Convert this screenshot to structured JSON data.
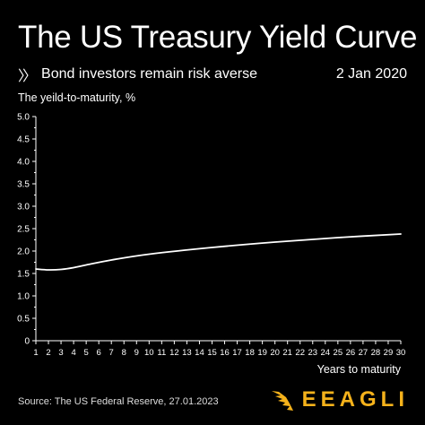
{
  "header": {
    "title": "The US Treasury Yield Curve",
    "subtitle_chevron": "〉〉",
    "subtitle": "Bond investors remain risk averse",
    "date": "2 Jan 2020"
  },
  "footer": {
    "source": "Source: The US Federal Reserve, 27.01.2023",
    "brand": "EEAGLI"
  },
  "colors": {
    "background": "#000000",
    "foreground": "#ffffff",
    "accent": "#f5b21b"
  },
  "chart_data": {
    "type": "line",
    "title": "The US Treasury Yield Curve",
    "subtitle": "Bond investors remain risk averse",
    "ylabel": "The yeild-to-maturity, %",
    "xlabel": "Years to maturity",
    "xlim": [
      1,
      30
    ],
    "ylim": [
      0,
      5.0
    ],
    "xticks": [
      1,
      2,
      3,
      4,
      5,
      6,
      7,
      8,
      9,
      10,
      11,
      12,
      13,
      14,
      15,
      16,
      17,
      18,
      19,
      20,
      21,
      22,
      23,
      24,
      25,
      26,
      27,
      28,
      29,
      30
    ],
    "yticks": [
      "0",
      "0.5",
      "1.0",
      "1.5",
      "2.0",
      "2.5",
      "3.0",
      "3.5",
      "4.0",
      "4.5",
      "5.0"
    ],
    "grid": false,
    "series": [
      {
        "x": [
          1,
          2,
          3,
          4,
          5,
          7,
          10,
          15,
          20,
          25,
          30
        ],
        "y": [
          1.6,
          1.58,
          1.59,
          1.63,
          1.69,
          1.8,
          1.93,
          2.08,
          2.2,
          2.3,
          2.38
        ]
      }
    ]
  }
}
